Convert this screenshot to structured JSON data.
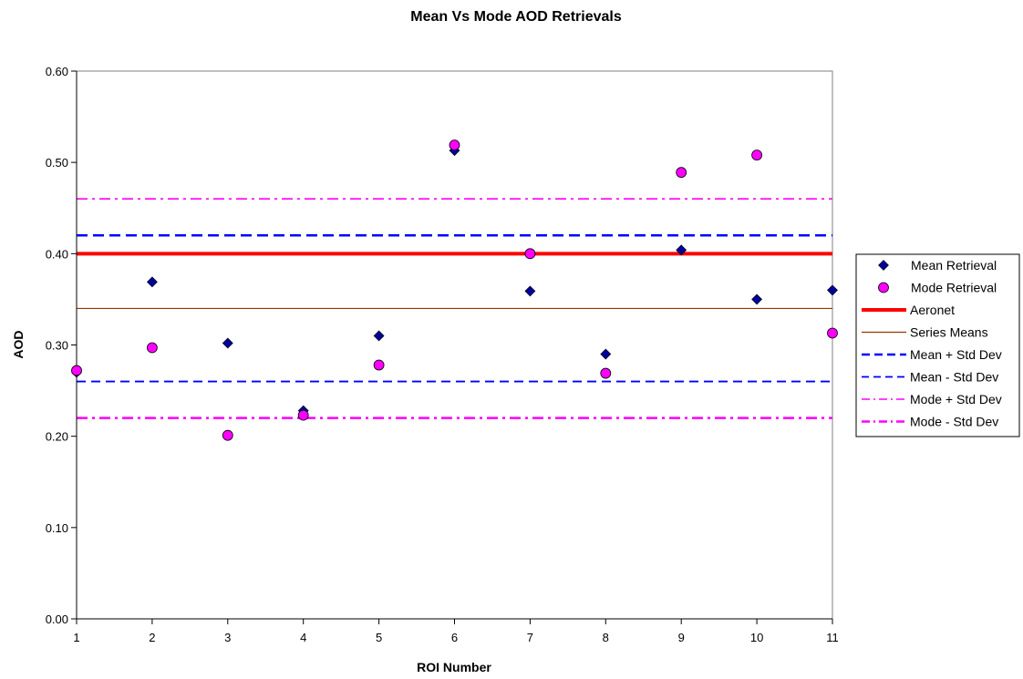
{
  "chart_data": {
    "type": "scatter",
    "title": "Mean Vs Mode AOD Retrievals",
    "xlabel": "ROI Number",
    "ylabel": "AOD",
    "x": [
      1,
      2,
      3,
      4,
      5,
      6,
      7,
      8,
      9,
      10,
      11
    ],
    "xlim": [
      1,
      11
    ],
    "ylim": [
      0,
      0.6
    ],
    "yticks": [
      "0.00",
      "0.10",
      "0.20",
      "0.30",
      "0.40",
      "0.50",
      "0.60"
    ],
    "xticks": [
      "1",
      "2",
      "3",
      "4",
      "5",
      "6",
      "7",
      "8",
      "9",
      "10",
      "11"
    ],
    "grid": false,
    "legend_position": "right",
    "series": [
      {
        "name": "Mean Retrieval",
        "kind": "points",
        "marker": "diamond",
        "color": "#000099",
        "values": [
          0.27,
          0.369,
          0.302,
          0.228,
          0.31,
          0.513,
          0.359,
          0.29,
          0.404,
          0.35,
          0.36
        ]
      },
      {
        "name": "Mode Retrieval",
        "kind": "points",
        "marker": "circle",
        "color": "#ff00ff",
        "values": [
          0.272,
          0.297,
          0.201,
          0.223,
          0.278,
          0.519,
          0.4,
          0.269,
          0.489,
          0.508,
          0.313
        ]
      },
      {
        "name": "Aeronet",
        "kind": "hline",
        "value": 0.4,
        "color": "#ff0000",
        "style": "solid-thick"
      },
      {
        "name": "Series Means",
        "kind": "hline",
        "value": 0.34,
        "color": "#993300",
        "style": "solid-thin"
      },
      {
        "name": "Mean + Std Dev",
        "kind": "hline",
        "value": 0.42,
        "color": "#0000ff",
        "style": "dash-thick"
      },
      {
        "name": "Mean - Std Dev",
        "kind": "hline",
        "value": 0.26,
        "color": "#0000ff",
        "style": "dash-thin"
      },
      {
        "name": "Mode + Std Dev",
        "kind": "hline",
        "value": 0.46,
        "color": "#ff00ff",
        "style": "dashdot-thin"
      },
      {
        "name": "Mode - Std Dev",
        "kind": "hline",
        "value": 0.22,
        "color": "#ff00ff",
        "style": "dashdot-thick"
      }
    ]
  }
}
